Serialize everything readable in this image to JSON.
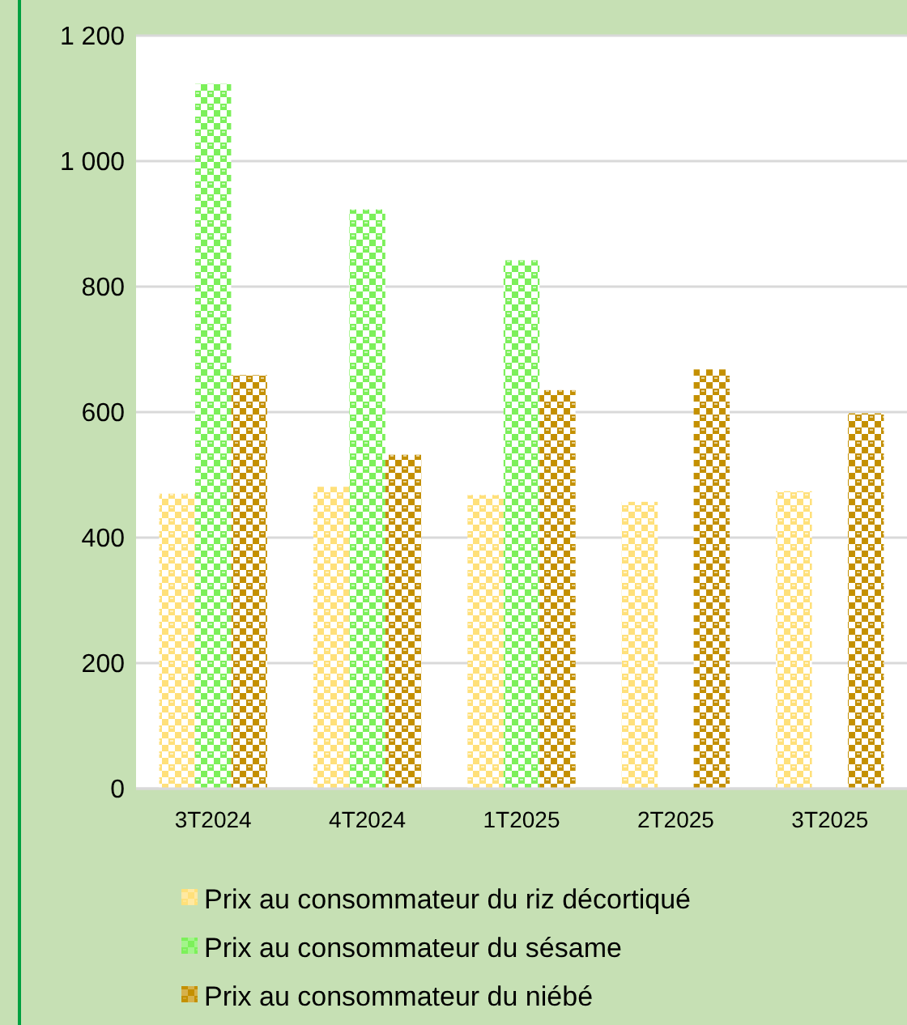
{
  "chart_data": {
    "type": "bar",
    "categories": [
      "3T2024",
      "4T2024",
      "1T2025",
      "2T2025",
      "3T2025"
    ],
    "series": [
      {
        "name": "Prix au consommateur du riz décortiqué",
        "color": "#ffe07a",
        "values": [
          470,
          481,
          468,
          457,
          474
        ]
      },
      {
        "name": "Prix au consommateur du sésame",
        "color": "#7cf05a",
        "values": [
          1123,
          923,
          842,
          null,
          null
        ]
      },
      {
        "name": "Prix au consommateur du niébé",
        "color": "#c49000",
        "values": [
          659,
          532,
          635,
          668,
          598
        ]
      }
    ],
    "ylim": [
      0,
      1200
    ],
    "yticks": [
      {
        "value": 0,
        "label": "0"
      },
      {
        "value": 200,
        "label": "200"
      },
      {
        "value": 400,
        "label": "400"
      },
      {
        "value": 600,
        "label": "600"
      },
      {
        "value": 800,
        "label": "800"
      },
      {
        "value": 1000,
        "label": "1 000"
      },
      {
        "value": 1200,
        "label": "1 200"
      }
    ],
    "grid": "y",
    "legend": "bottom"
  }
}
